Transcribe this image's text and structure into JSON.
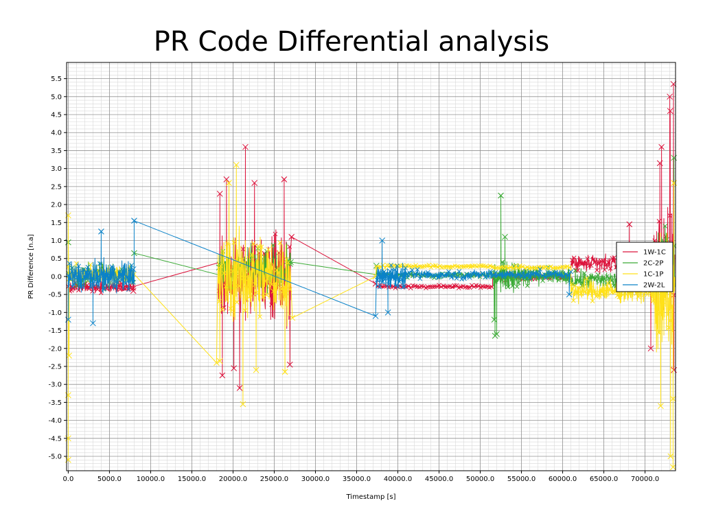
{
  "chart_data": {
    "type": "line",
    "title": "PR Code Differential analysis",
    "xlabel": "Timestamp [s]",
    "ylabel": "PR Difference [n.a]",
    "xlim": [
      -200,
      73700
    ],
    "ylim": [
      -5.4,
      5.95
    ],
    "xticks": [
      0,
      5000,
      10000,
      15000,
      20000,
      25000,
      30000,
      35000,
      40000,
      45000,
      50000,
      55000,
      60000,
      65000,
      70000
    ],
    "xtick_labels": [
      "0.0",
      "5000.0",
      "10000.0",
      "15000.0",
      "20000.0",
      "25000.0",
      "30000.0",
      "35000.0",
      "40000.0",
      "45000.0",
      "50000.0",
      "55000.0",
      "60000.0",
      "65000.0",
      "70000.0"
    ],
    "yticks": [
      -5.0,
      -4.5,
      -4.0,
      -3.5,
      -3.0,
      -2.5,
      -2.0,
      -1.5,
      -1.0,
      -0.5,
      0.0,
      0.5,
      1.0,
      1.5,
      2.0,
      2.5,
      3.0,
      3.5,
      4.0,
      4.5,
      5.0,
      5.5
    ],
    "ytick_labels": [
      "-5.0",
      "-4.5",
      "-4.0",
      "-3.5",
      "-3.0",
      "-2.5",
      "-2.0",
      "-1.5",
      "-1.0",
      "-0.5",
      "0.0",
      "0.5",
      "1.0",
      "1.5",
      "2.0",
      "2.5",
      "3.0",
      "3.5",
      "4.0",
      "4.5",
      "5.0",
      "5.5"
    ],
    "grid": "major and minor",
    "marker": "x",
    "legend_position": "right",
    "series": [
      {
        "name": "1W-1C",
        "color": "#dc143c",
        "segments": [
          {
            "x_start": 0,
            "x_end": 8000,
            "center": -0.3,
            "spread": 0.2,
            "density": 230
          },
          {
            "x_start": 18200,
            "x_end": 27000,
            "center": 0.0,
            "spread": 1.6,
            "density": 240
          },
          {
            "x_start": 37400,
            "x_end": 51500,
            "center": -0.28,
            "spread": 0.06,
            "density": 320
          },
          {
            "x_start": 51500,
            "x_end": 61000,
            "center": 0.0,
            "spread": 0.15,
            "density": 160
          },
          {
            "x_start": 61000,
            "x_end": 71000,
            "center": 0.35,
            "spread": 0.35,
            "density": 260
          },
          {
            "x_start": 71000,
            "x_end": 73600,
            "center": 0.3,
            "spread": 2.2,
            "density": 90
          }
        ],
        "points": [
          {
            "x": 7900,
            "y": -0.4
          },
          {
            "x": 18400,
            "y": 2.3
          },
          {
            "x": 19200,
            "y": 2.7
          },
          {
            "x": 21500,
            "y": 3.6
          },
          {
            "x": 22600,
            "y": 2.6
          },
          {
            "x": 26200,
            "y": 2.7
          },
          {
            "x": 18700,
            "y": -2.75
          },
          {
            "x": 20100,
            "y": -2.55
          },
          {
            "x": 20800,
            "y": -3.1
          },
          {
            "x": 26900,
            "y": -2.45
          },
          {
            "x": 27100,
            "y": 1.1
          },
          {
            "x": 37300,
            "y": -0.2
          },
          {
            "x": 72000,
            "y": 3.6
          },
          {
            "x": 73000,
            "y": 5.0
          },
          {
            "x": 73050,
            "y": 4.6
          },
          {
            "x": 73450,
            "y": 5.35
          },
          {
            "x": 73500,
            "y": -2.6
          },
          {
            "x": 70700,
            "y": -2.0
          },
          {
            "x": 68100,
            "y": 1.45
          },
          {
            "x": 71800,
            "y": 3.15
          }
        ]
      },
      {
        "name": "2C-2P",
        "color": "#3aaa35",
        "segments": [
          {
            "x_start": 0,
            "x_end": 8000,
            "center": 0.05,
            "spread": 0.45,
            "density": 200
          },
          {
            "x_start": 18200,
            "x_end": 27000,
            "center": 0.2,
            "spread": 0.9,
            "density": 200
          },
          {
            "x_start": 37400,
            "x_end": 51500,
            "center": 0.05,
            "spread": 0.1,
            "density": 260
          },
          {
            "x_start": 51500,
            "x_end": 56000,
            "center": 0.0,
            "spread": 0.55,
            "density": 150
          },
          {
            "x_start": 56000,
            "x_end": 61000,
            "center": 0.0,
            "spread": 0.3,
            "density": 140
          },
          {
            "x_start": 61000,
            "x_end": 71000,
            "center": -0.1,
            "spread": 0.35,
            "density": 220
          },
          {
            "x_start": 71000,
            "x_end": 73600,
            "center": 0.4,
            "spread": 1.4,
            "density": 70
          }
        ],
        "points": [
          {
            "x": 0,
            "y": 0.95
          },
          {
            "x": 8000,
            "y": 0.65
          },
          {
            "x": 18300,
            "y": 0.25
          },
          {
            "x": 27000,
            "y": 0.4
          },
          {
            "x": 37400,
            "y": 0.3
          },
          {
            "x": 51800,
            "y": -1.65
          },
          {
            "x": 52000,
            "y": -1.6
          },
          {
            "x": 51700,
            "y": -1.2
          },
          {
            "x": 52500,
            "y": 2.25
          },
          {
            "x": 53000,
            "y": 1.1
          },
          {
            "x": 73500,
            "y": 3.3
          }
        ]
      },
      {
        "name": "1C-1P",
        "color": "#ffe119",
        "segments": [
          {
            "x_start": 0,
            "x_end": 8000,
            "center": 0.05,
            "spread": 0.35,
            "density": 200
          },
          {
            "x_start": 18200,
            "x_end": 27000,
            "center": 0.0,
            "spread": 1.7,
            "density": 260
          },
          {
            "x_start": 37400,
            "x_end": 51500,
            "center": 0.28,
            "spread": 0.05,
            "density": 320
          },
          {
            "x_start": 51500,
            "x_end": 61000,
            "center": 0.25,
            "spread": 0.08,
            "density": 200
          },
          {
            "x_start": 61000,
            "x_end": 71000,
            "center": -0.4,
            "spread": 0.45,
            "density": 260
          },
          {
            "x_start": 71000,
            "x_end": 73600,
            "center": -0.6,
            "spread": 2.4,
            "density": 90
          }
        ],
        "points": [
          {
            "x": 0,
            "y": -5.1
          },
          {
            "x": 0,
            "y": -4.5
          },
          {
            "x": 0,
            "y": -3.3
          },
          {
            "x": 0,
            "y": 1.7
          },
          {
            "x": 100,
            "y": -2.2
          },
          {
            "x": 18000,
            "y": -2.4
          },
          {
            "x": 18400,
            "y": -2.35
          },
          {
            "x": 19500,
            "y": 2.6
          },
          {
            "x": 21200,
            "y": -3.55
          },
          {
            "x": 22800,
            "y": -2.6
          },
          {
            "x": 20400,
            "y": 3.1
          },
          {
            "x": 26300,
            "y": -2.65
          },
          {
            "x": 27200,
            "y": -1.15
          },
          {
            "x": 37300,
            "y": 0.0
          },
          {
            "x": 71900,
            "y": -3.6
          },
          {
            "x": 73100,
            "y": -5.0
          },
          {
            "x": 73400,
            "y": -5.3
          },
          {
            "x": 73400,
            "y": -3.4
          },
          {
            "x": 73500,
            "y": 2.6
          }
        ]
      },
      {
        "name": "2W-2L",
        "color": "#0a82c8",
        "segments": [
          {
            "x_start": 0,
            "x_end": 8000,
            "center": 0.0,
            "spread": 0.6,
            "density": 260
          },
          {
            "x_start": 37400,
            "x_end": 41000,
            "center": 0.0,
            "spread": 0.45,
            "density": 150
          },
          {
            "x_start": 41000,
            "x_end": 61000,
            "center": 0.05,
            "spread": 0.18,
            "density": 380
          }
        ],
        "points": [
          {
            "x": 0,
            "y": -1.2
          },
          {
            "x": 3000,
            "y": -1.3
          },
          {
            "x": 4000,
            "y": 1.25
          },
          {
            "x": 8000,
            "y": 1.55
          },
          {
            "x": 7900,
            "y": 0.2
          },
          {
            "x": 37300,
            "y": -1.1
          },
          {
            "x": 38100,
            "y": 1.0
          },
          {
            "x": 38800,
            "y": -1.0
          },
          {
            "x": 60800,
            "y": -0.5
          }
        ]
      }
    ]
  }
}
